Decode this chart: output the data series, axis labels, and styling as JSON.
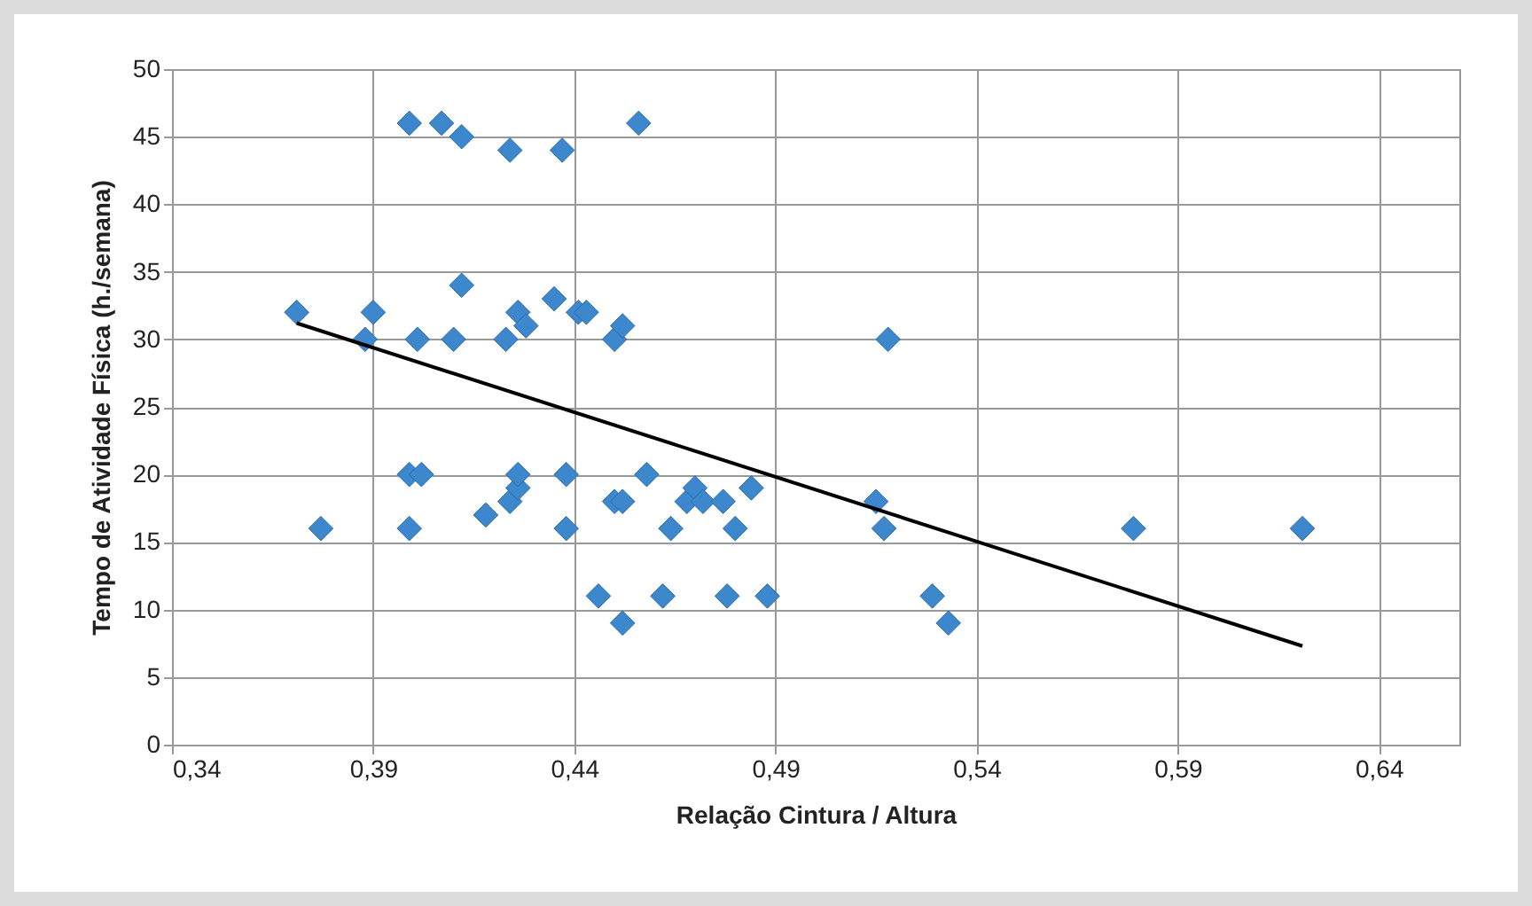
{
  "chart_data": {
    "type": "scatter",
    "xlabel": "Relação Cintura / Altura",
    "ylabel": "Tempo de Atividade Física (h./semana)",
    "xlim": [
      0.34,
      0.66
    ],
    "ylim": [
      0,
      50
    ],
    "xticks": [
      {
        "value": 0.34,
        "label": "0,34"
      },
      {
        "value": 0.39,
        "label": "0,39"
      },
      {
        "value": 0.44,
        "label": "0,44"
      },
      {
        "value": 0.49,
        "label": "0,49"
      },
      {
        "value": 0.54,
        "label": "0,54"
      },
      {
        "value": 0.59,
        "label": "0,59"
      },
      {
        "value": 0.64,
        "label": "0,64"
      }
    ],
    "yticks": [
      0,
      5,
      10,
      15,
      20,
      25,
      30,
      35,
      40,
      45,
      50
    ],
    "grid": true,
    "series": [
      {
        "type": "scatter",
        "marker": "diamond",
        "color": "#3d87cc",
        "x": [
          0.371,
          0.377,
          0.388,
          0.39,
          0.399,
          0.407,
          0.412,
          0.424,
          0.437,
          0.456,
          0.399,
          0.402,
          0.399,
          0.401,
          0.41,
          0.412,
          0.423,
          0.426,
          0.428,
          0.435,
          0.441,
          0.443,
          0.45,
          0.452,
          0.418,
          0.424,
          0.426,
          0.426,
          0.438,
          0.438,
          0.446,
          0.45,
          0.452,
          0.452,
          0.458,
          0.464,
          0.462,
          0.468,
          0.47,
          0.472,
          0.477,
          0.48,
          0.478,
          0.484,
          0.488,
          0.515,
          0.517,
          0.518,
          0.529,
          0.533,
          0.579,
          0.621
        ],
        "values": [
          32,
          16,
          30,
          32,
          46,
          46,
          45,
          44,
          44,
          46,
          20,
          20,
          16,
          30,
          30,
          34,
          30,
          32,
          31,
          33,
          32,
          32,
          30,
          31,
          17,
          18,
          19,
          20,
          20,
          16,
          11,
          18,
          18,
          9,
          20,
          16,
          11,
          18,
          19,
          18,
          18,
          16,
          11,
          19,
          11,
          18,
          16,
          30,
          11,
          9,
          16,
          16
        ]
      },
      {
        "type": "line",
        "color": "#000000",
        "x": [
          0.371,
          0.621
        ],
        "values": [
          31.2,
          7.3
        ]
      }
    ]
  }
}
